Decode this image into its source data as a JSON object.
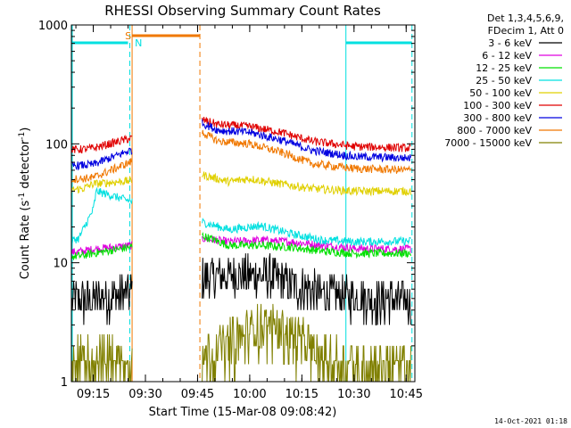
{
  "chart_data": {
    "type": "line",
    "title": "RHESSI Observing Summary Count Rates",
    "xlabel": "Start Time (15-Mar-08 09:08:42)",
    "ylabel": "Count Rate (s^-1 detector^-1)",
    "ylabel_parts": {
      "main": "Count Rate (s",
      "sup1": "-1",
      "mid": " detector",
      "sup2": "-1",
      "end": ")"
    },
    "yscale": "log",
    "ylim": [
      1,
      1000
    ],
    "xlim": [
      "09:08:42",
      "10:47:30"
    ],
    "x_ticks": [
      "09:15",
      "09:30",
      "09:45",
      "10:00",
      "10:15",
      "10:30",
      "10:45"
    ],
    "y_ticks": [
      "1",
      "10",
      "100",
      "1000"
    ],
    "legend_header": [
      "Det 1,3,4,5,6,9,",
      "FDecim 1, Att 0"
    ],
    "legend_position": "right",
    "timestamp": "14-Oct-2021 01:18",
    "markers": {
      "saa": "S",
      "night": "N"
    },
    "series": [
      {
        "name": "3 - 6 keV",
        "color": "#000000",
        "values": [
          [
            9.09,
            4.8
          ],
          [
            9.25,
            4.8
          ],
          [
            9.77,
            7.5
          ],
          [
            9.95,
            7.8
          ],
          [
            10.1,
            7.8
          ],
          [
            10.2,
            6.5
          ],
          [
            10.35,
            5.5
          ],
          [
            10.5,
            5.0
          ],
          [
            10.78,
            4.8
          ]
        ]
      },
      {
        "name": "6 - 12 keV",
        "color": "#e000e0",
        "values": [
          [
            9.09,
            12
          ],
          [
            9.2,
            12.5
          ],
          [
            9.25,
            13
          ],
          [
            9.77,
            16
          ],
          [
            9.9,
            15
          ],
          [
            10.05,
            15.5
          ],
          [
            10.2,
            15
          ],
          [
            10.35,
            14
          ],
          [
            10.5,
            13.2
          ],
          [
            10.78,
            13
          ]
        ]
      },
      {
        "name": "12 - 25 keV",
        "color": "#00e000",
        "values": [
          [
            9.09,
            11
          ],
          [
            9.2,
            11.5
          ],
          [
            9.25,
            12
          ],
          [
            9.77,
            17
          ],
          [
            9.9,
            14
          ],
          [
            10.05,
            14
          ],
          [
            10.2,
            13.5
          ],
          [
            10.35,
            12.5
          ],
          [
            10.5,
            12
          ],
          [
            10.78,
            12
          ]
        ]
      },
      {
        "name": "25 - 50 keV",
        "color": "#00e0e0",
        "values": [
          [
            9.09,
            14.5
          ],
          [
            9.18,
            16
          ],
          [
            9.25,
            28
          ],
          [
            9.265,
            40
          ],
          [
            9.77,
            22
          ],
          [
            9.9,
            19
          ],
          [
            10.05,
            20.5
          ],
          [
            10.2,
            17.5
          ],
          [
            10.35,
            15.5
          ],
          [
            10.5,
            15
          ],
          [
            10.78,
            15.2
          ]
        ]
      },
      {
        "name": "50 - 100 keV",
        "color": "#e0d000",
        "values": [
          [
            9.09,
            40
          ],
          [
            9.2,
            42
          ],
          [
            9.25,
            46
          ],
          [
            9.77,
            55
          ],
          [
            9.9,
            48
          ],
          [
            10.0,
            51
          ],
          [
            10.15,
            46
          ],
          [
            10.3,
            42
          ],
          [
            10.5,
            40
          ],
          [
            10.78,
            40
          ]
        ]
      },
      {
        "name": "100 - 300 keV",
        "color": "#e00000",
        "values": [
          [
            9.09,
            88
          ],
          [
            9.2,
            90
          ],
          [
            9.25,
            92
          ],
          [
            9.77,
            160
          ],
          [
            9.85,
            145
          ],
          [
            10.0,
            140
          ],
          [
            10.15,
            125
          ],
          [
            10.3,
            105
          ],
          [
            10.5,
            95
          ],
          [
            10.78,
            92
          ]
        ]
      },
      {
        "name": "300 - 800 keV",
        "color": "#0000e0",
        "values": [
          [
            9.09,
            65
          ],
          [
            9.2,
            66
          ],
          [
            9.25,
            67
          ],
          [
            9.77,
            150
          ],
          [
            9.85,
            130
          ],
          [
            10.0,
            125
          ],
          [
            10.15,
            108
          ],
          [
            10.3,
            88
          ],
          [
            10.5,
            78
          ],
          [
            10.78,
            76
          ]
        ]
      },
      {
        "name": "800 - 7000 keV",
        "color": "#f07800",
        "values": [
          [
            9.09,
            50
          ],
          [
            9.2,
            51
          ],
          [
            9.25,
            52
          ],
          [
            9.77,
            125
          ],
          [
            9.85,
            105
          ],
          [
            10.0,
            100
          ],
          [
            10.15,
            85
          ],
          [
            10.3,
            68
          ],
          [
            10.5,
            62
          ],
          [
            10.78,
            60
          ]
        ]
      },
      {
        "name": "7000 - 15000 keV",
        "color": "#808000",
        "values": [
          [
            9.09,
            1.6
          ],
          [
            9.25,
            1.7
          ],
          [
            9.77,
            1.8
          ],
          [
            9.95,
            2.5
          ],
          [
            10.1,
            3.2
          ],
          [
            10.2,
            2.6
          ],
          [
            10.35,
            1.7
          ],
          [
            10.5,
            1.5
          ],
          [
            10.78,
            1.5
          ]
        ]
      }
    ]
  }
}
